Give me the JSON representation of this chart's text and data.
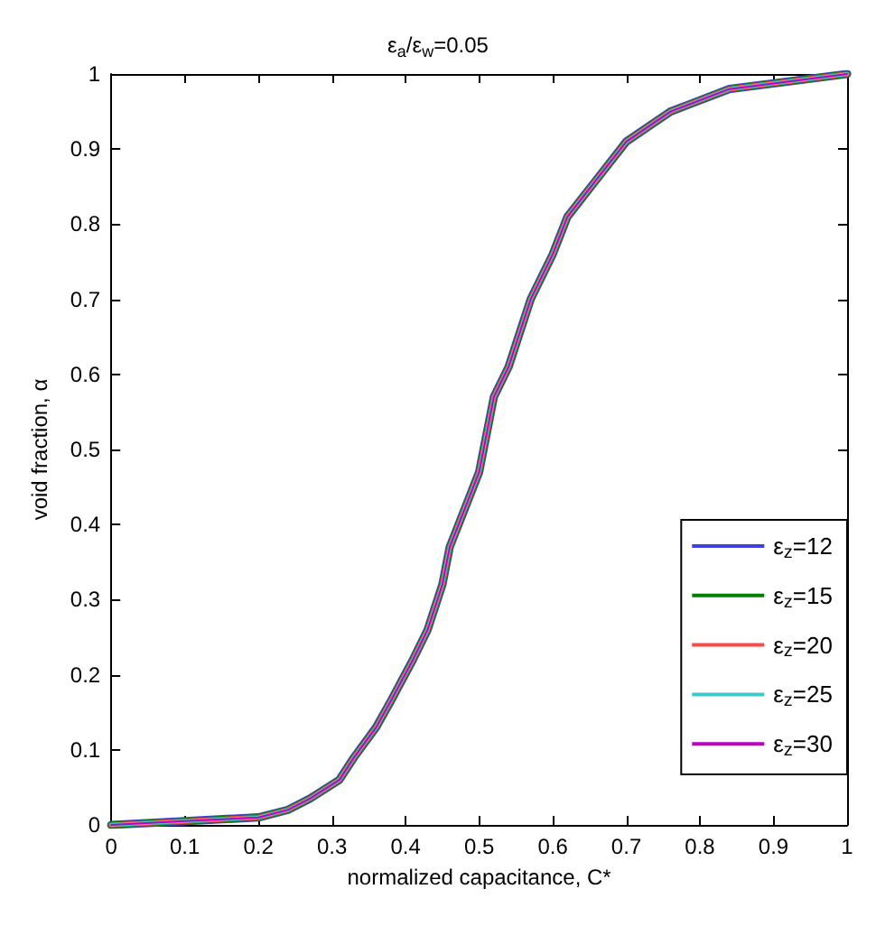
{
  "chart_data": {
    "type": "line",
    "title": "ε$_{a}$/ε$_{w}$=0.05",
    "xlabel": "normalized capacitance, C*",
    "ylabel": "void fraction, α",
    "x": [
      0,
      0.1,
      0.2,
      0.24,
      0.27,
      0.31,
      0.33,
      0.36,
      0.38,
      0.41,
      0.43,
      0.45,
      0.46,
      0.48,
      0.5,
      0.51,
      0.52,
      0.54,
      0.55,
      0.57,
      0.6,
      0.62,
      0.66,
      0.7,
      0.76,
      0.84,
      1
    ],
    "series": [
      {
        "name": "ε$_{z}$=12",
        "color": "#4040e0",
        "values": [
          0,
          0.005,
          0.01,
          0.02,
          0.035,
          0.06,
          0.09,
          0.13,
          0.165,
          0.22,
          0.26,
          0.32,
          0.37,
          0.42,
          0.47,
          0.52,
          0.57,
          0.61,
          0.64,
          0.7,
          0.76,
          0.81,
          0.86,
          0.91,
          0.95,
          0.98,
          1
        ]
      },
      {
        "name": "ε$_{z}$=15",
        "color": "#008000",
        "values": [
          0,
          0.005,
          0.01,
          0.02,
          0.035,
          0.06,
          0.09,
          0.13,
          0.165,
          0.22,
          0.26,
          0.32,
          0.37,
          0.42,
          0.47,
          0.52,
          0.57,
          0.61,
          0.64,
          0.7,
          0.76,
          0.81,
          0.86,
          0.91,
          0.95,
          0.98,
          1
        ]
      },
      {
        "name": "ε$_{z}$=20",
        "color": "#ff4848",
        "values": [
          0,
          0.005,
          0.01,
          0.02,
          0.035,
          0.06,
          0.09,
          0.13,
          0.165,
          0.22,
          0.26,
          0.32,
          0.37,
          0.42,
          0.47,
          0.52,
          0.57,
          0.61,
          0.64,
          0.7,
          0.76,
          0.81,
          0.86,
          0.91,
          0.95,
          0.98,
          1
        ]
      },
      {
        "name": "ε$_{z}$=25",
        "color": "#40c8c8",
        "values": [
          0,
          0.005,
          0.01,
          0.02,
          0.035,
          0.06,
          0.09,
          0.13,
          0.165,
          0.22,
          0.26,
          0.32,
          0.37,
          0.42,
          0.47,
          0.52,
          0.57,
          0.61,
          0.64,
          0.7,
          0.76,
          0.81,
          0.86,
          0.91,
          0.95,
          0.98,
          1
        ]
      },
      {
        "name": "ε$_{z}$=30",
        "color": "#c000c0",
        "values": [
          0,
          0.005,
          0.01,
          0.02,
          0.035,
          0.06,
          0.09,
          0.13,
          0.165,
          0.22,
          0.26,
          0.32,
          0.37,
          0.42,
          0.47,
          0.52,
          0.57,
          0.61,
          0.64,
          0.7,
          0.76,
          0.81,
          0.86,
          0.91,
          0.95,
          0.98,
          1
        ]
      }
    ],
    "xlim": [
      0,
      1
    ],
    "xticks": [
      0,
      0.1,
      0.2,
      0.3,
      0.4,
      0.5,
      0.6,
      0.7,
      0.8,
      0.9,
      1
    ],
    "ylim": [
      0,
      1
    ],
    "yticks": [
      0,
      0.1,
      0.2,
      0.3,
      0.4,
      0.5,
      0.6,
      0.7,
      0.8,
      0.9,
      1
    ],
    "grid": false,
    "legend": "bottom right",
    "marker": "none",
    "line_style": "solid"
  }
}
